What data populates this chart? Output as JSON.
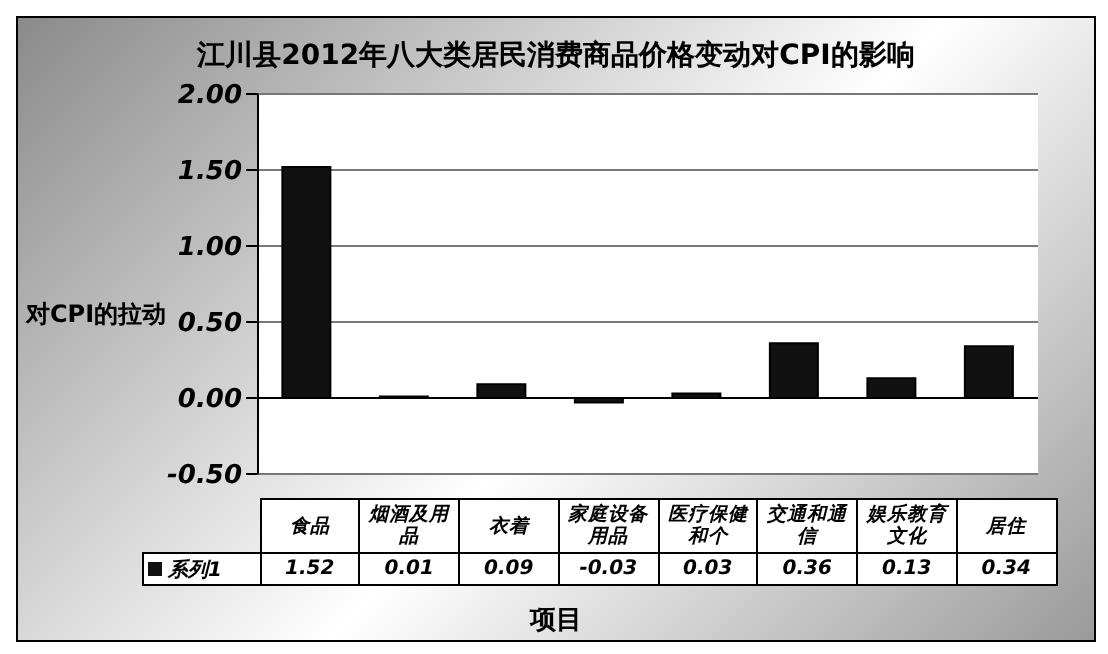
{
  "chart_data": {
    "type": "bar",
    "title": "江川县2012年八大类居民消费商品价格变动对CPI的影响",
    "xlabel": "项目",
    "ylabel": "对CPI的拉动",
    "categories": [
      "食品",
      "烟酒及用品",
      "衣着",
      "家庭设备用品",
      "医疗保健和个",
      "交通和通信",
      "娱乐教育文化",
      "居住"
    ],
    "series": [
      {
        "name": "系列1",
        "color": "#111111",
        "values": [
          1.52,
          0.01,
          0.09,
          -0.03,
          0.03,
          0.36,
          0.13,
          0.34
        ]
      }
    ],
    "ylim": [
      -0.5,
      2
    ],
    "yticks": [
      {
        "value": -0.5,
        "label": "-0.50"
      },
      {
        "value": 0,
        "label": "0.00"
      },
      {
        "value": 0.5,
        "label": "0.50"
      },
      {
        "value": 1,
        "label": "1.00"
      },
      {
        "value": 1.5,
        "label": "1.50"
      },
      {
        "value": 2,
        "label": "2.00"
      }
    ],
    "grid": "y",
    "data_labels": true,
    "legend": "bottom"
  }
}
